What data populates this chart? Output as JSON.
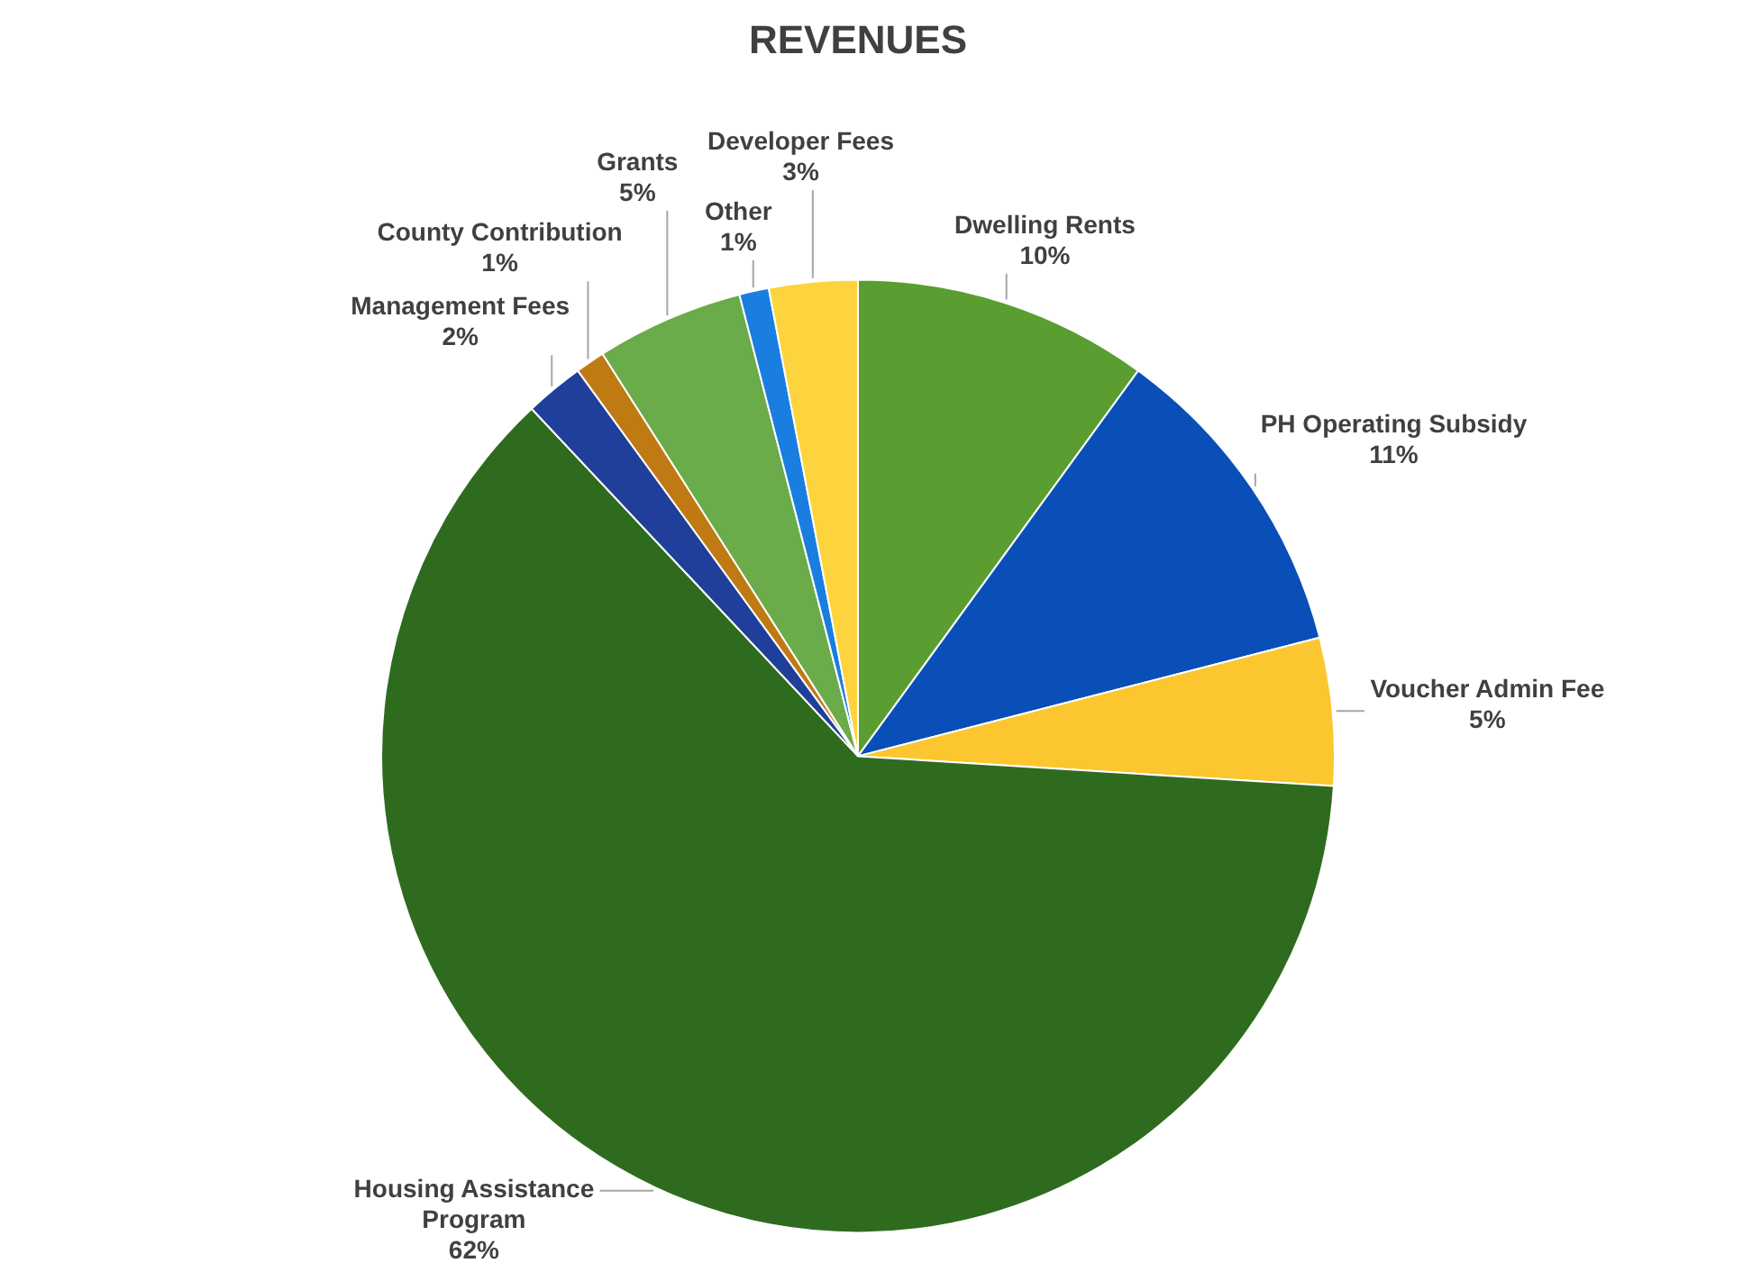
{
  "chart_data": {
    "type": "pie",
    "title": "REVENUES",
    "categories": [
      "Dwelling Rents",
      "PH Operating Subsidy",
      "Voucher Admin Fee",
      "Housing Assistance Program",
      "Management Fees",
      "County Contribution",
      "Grants",
      "Other",
      "Developer Fees"
    ],
    "values": [
      10,
      11,
      5,
      62,
      2,
      1,
      5,
      1,
      3
    ],
    "colors": [
      "#5a9e32",
      "#0a4fb8",
      "#fcc630",
      "#2e6b1f",
      "#1f3f9a",
      "#c07a14",
      "#6aab4a",
      "#1a7ee0",
      "#fdd43e"
    ],
    "value_labels": [
      "10%",
      "11%",
      "5%",
      "62%",
      "2%",
      "1%",
      "5%",
      "1%",
      "3%"
    ]
  }
}
